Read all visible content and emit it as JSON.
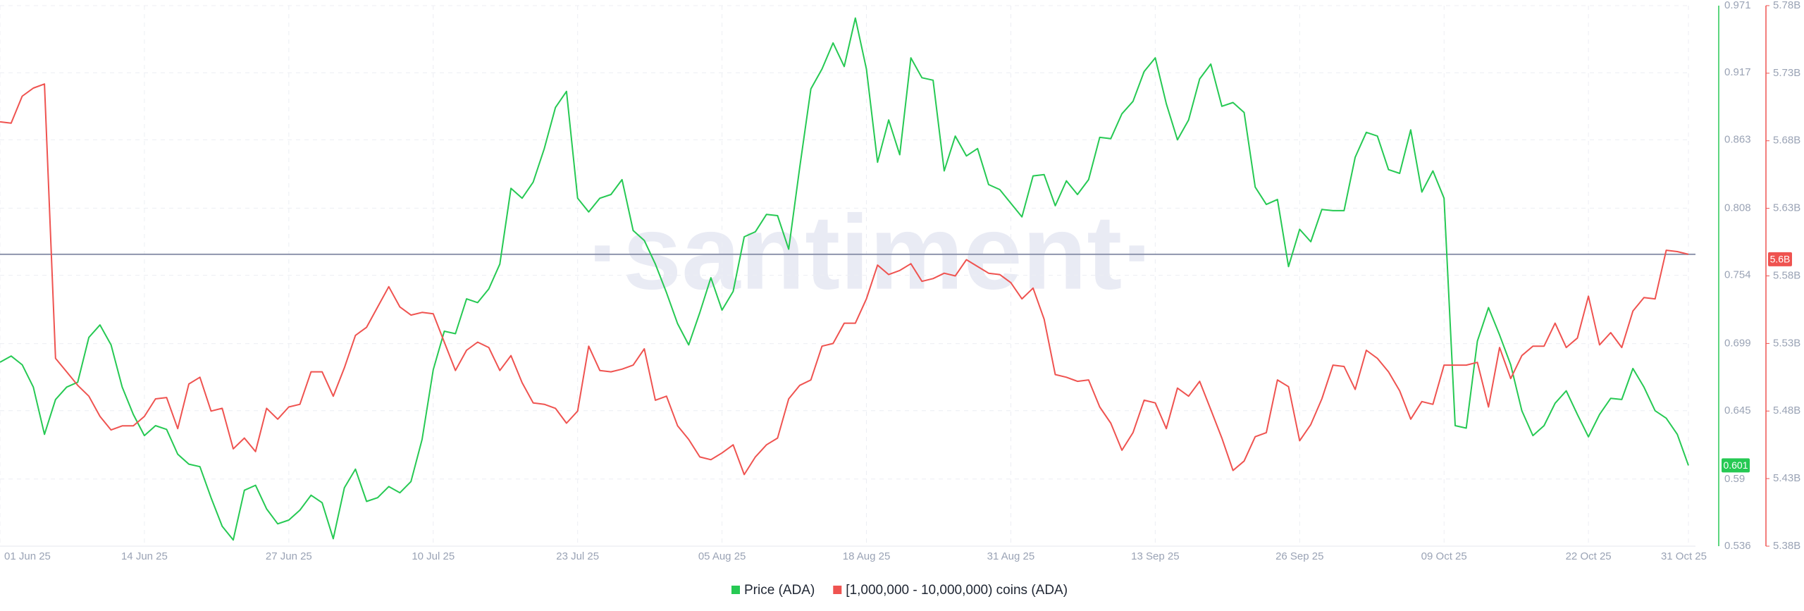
{
  "chart_data": {
    "type": "line",
    "watermark": "·santiment·",
    "categories": [
      "01 Jun 25",
      null,
      null,
      null,
      null,
      null,
      null,
      null,
      null,
      null,
      null,
      null,
      null,
      "14 Jun 25",
      null,
      null,
      null,
      null,
      null,
      null,
      null,
      null,
      null,
      null,
      null,
      null,
      "27 Jun 25",
      null,
      null,
      null,
      null,
      null,
      null,
      null,
      null,
      null,
      null,
      null,
      null,
      "10 Jul 25",
      null,
      null,
      null,
      null,
      null,
      null,
      null,
      null,
      null,
      null,
      null,
      null,
      "23 Jul 25",
      null,
      null,
      null,
      null,
      null,
      null,
      null,
      null,
      null,
      null,
      null,
      null,
      "05 Aug 25",
      null,
      null,
      null,
      null,
      null,
      null,
      null,
      null,
      null,
      null,
      null,
      null,
      "18 Aug 25",
      null,
      null,
      null,
      null,
      null,
      null,
      null,
      null,
      null,
      null,
      null,
      null,
      "31 Aug 25",
      null,
      null,
      null,
      null,
      null,
      null,
      null,
      null,
      null,
      null,
      null,
      null,
      "13 Sep 25",
      null,
      null,
      null,
      null,
      null,
      null,
      null,
      null,
      null,
      null,
      null,
      null,
      "26 Sep 25",
      null,
      null,
      null,
      null,
      null,
      null,
      null,
      null,
      null,
      null,
      null,
      null,
      "09 Oct 25",
      null,
      null,
      null,
      null,
      null,
      null,
      null,
      null,
      null,
      null,
      null,
      null,
      "22 Oct 25",
      null,
      null,
      null,
      null,
      null,
      null,
      null,
      null,
      "31 Oct 25"
    ],
    "series": [
      {
        "name": "Price (ADA)",
        "color": "#26c953",
        "axis": "y",
        "values": [
          0.684,
          0.689,
          0.682,
          0.664,
          0.626,
          0.654,
          0.664,
          0.668,
          0.704,
          0.714,
          0.698,
          0.664,
          0.642,
          0.625,
          0.633,
          0.63,
          0.61,
          0.602,
          0.6,
          0.575,
          0.552,
          0.541,
          0.581,
          0.585,
          0.566,
          0.554,
          0.557,
          0.565,
          0.577,
          0.571,
          0.542,
          0.583,
          0.598,
          0.572,
          0.575,
          0.584,
          0.579,
          0.588,
          0.622,
          0.678,
          0.709,
          0.707,
          0.735,
          0.732,
          0.743,
          0.763,
          0.824,
          0.816,
          0.829,
          0.856,
          0.889,
          0.902,
          0.816,
          0.805,
          0.816,
          0.819,
          0.831,
          0.79,
          0.782,
          0.763,
          0.74,
          0.715,
          0.698,
          0.724,
          0.752,
          0.726,
          0.741,
          0.785,
          0.789,
          0.803,
          0.802,
          0.775,
          0.841,
          0.904,
          0.92,
          0.941,
          0.922,
          0.961,
          0.92,
          0.845,
          0.879,
          0.851,
          0.929,
          0.913,
          0.911,
          0.838,
          0.866,
          0.85,
          0.856,
          0.827,
          0.823,
          0.812,
          0.801,
          0.834,
          0.835,
          0.81,
          0.83,
          0.819,
          0.831,
          0.865,
          0.864,
          0.884,
          0.894,
          0.918,
          0.929,
          0.892,
          0.863,
          0.879,
          0.912,
          0.924,
          0.89,
          0.893,
          0.885,
          0.825,
          0.811,
          0.815,
          0.761,
          0.791,
          0.781,
          0.807,
          0.806,
          0.806,
          0.849,
          0.869,
          0.866,
          0.839,
          0.836,
          0.871,
          0.821,
          0.838,
          0.816,
          0.633,
          0.631,
          0.701,
          0.728,
          0.706,
          0.682,
          0.645,
          0.625,
          0.633,
          0.651,
          0.661,
          0.642,
          0.624,
          0.642,
          0.655,
          0.654,
          0.679,
          0.664,
          0.645,
          0.639,
          0.626,
          0.601
        ]
      },
      {
        "name": "[1,000,000 - 10,000,000) coins (ADA)",
        "color": "#ef5350",
        "axis": "y2",
        "last_value_label": "5.6B",
        "values": [
          5694000000,
          5693000000,
          5713000000,
          5719000000,
          5722000000,
          5519000000,
          5509000000,
          5499000000,
          5491000000,
          5476000000,
          5466000000,
          5469000000,
          5469000000,
          5476000000,
          5489000000,
          5490000000,
          5467000000,
          5500000000,
          5505000000,
          5480000000,
          5482000000,
          5452000000,
          5460000000,
          5450000000,
          5482000000,
          5474000000,
          5483000000,
          5485000000,
          5509000000,
          5509000000,
          5491000000,
          5512000000,
          5536000000,
          5542000000,
          5557000000,
          5572000000,
          5557000000,
          5551000000,
          5553000000,
          5552000000,
          5531000000,
          5510000000,
          5525000000,
          5531000000,
          5527000000,
          5510000000,
          5521000000,
          5501000000,
          5486000000,
          5485000000,
          5482000000,
          5471000000,
          5480000000,
          5528000000,
          5510000000,
          5509000000,
          5511000000,
          5514000000,
          5526000000,
          5488000000,
          5491000000,
          5469000000,
          5459000000,
          5446000000,
          5444000000,
          5449000000,
          5455000000,
          5433000000,
          5446000000,
          5455000000,
          5460000000,
          5489000000,
          5499000000,
          5503000000,
          5528000000,
          5530000000,
          5545000000,
          5545000000,
          5563000000,
          5588000000,
          5581000000,
          5584000000,
          5589000000,
          5576000000,
          5578000000,
          5582000000,
          5580000000,
          5592000000,
          5587000000,
          5582000000,
          5581000000,
          5575000000,
          5563000000,
          5571000000,
          5548000000,
          5507000000,
          5505000000,
          5502000000,
          5503000000,
          5483000000,
          5471000000,
          5451000000,
          5464000000,
          5488000000,
          5486000000,
          5467000000,
          5497000000,
          5491000000,
          5502000000,
          5481000000,
          5460000000,
          5436000000,
          5443000000,
          5461000000,
          5464000000,
          5503000000,
          5498000000,
          5458000000,
          5470000000,
          5489000000,
          5514000000,
          5513000000,
          5496000000,
          5525000000,
          5519000000,
          5509000000,
          5495000000,
          5474000000,
          5487000000,
          5485000000,
          5514000000,
          5514000000,
          5514000000,
          5516000000,
          5483000000,
          5527000000,
          5504000000,
          5521000000,
          5528000000,
          5528000000,
          5545000000,
          5527000000,
          5534000000,
          5565000000,
          5529000000,
          5538000000,
          5527000000,
          5554000000,
          5564000000,
          5563000000,
          5599000000,
          5598000000,
          5596000000
        ]
      }
    ],
    "ylim": [
      0.536,
      0.971
    ],
    "yticks": [
      0.536,
      0.59,
      0.645,
      0.699,
      0.754,
      0.808,
      0.863,
      0.917,
      0.971
    ],
    "y2lim": [
      5380000000,
      5780000000
    ],
    "y2ticks": [
      {
        "value": 5380000000,
        "label": "5.38B"
      },
      {
        "value": 5430000000,
        "label": "5.43B"
      },
      {
        "value": 5480000000,
        "label": "5.48B"
      },
      {
        "value": 5530000000,
        "label": "5.53B"
      },
      {
        "value": 5580000000,
        "label": "5.58B"
      },
      {
        "value": 5630000000,
        "label": "5.63B"
      },
      {
        "value": 5680000000,
        "label": "5.68B"
      },
      {
        "value": 5730000000,
        "label": "5.73B"
      },
      {
        "value": 5780000000,
        "label": "5.78B"
      }
    ],
    "grid": true,
    "legend": "bottom"
  }
}
